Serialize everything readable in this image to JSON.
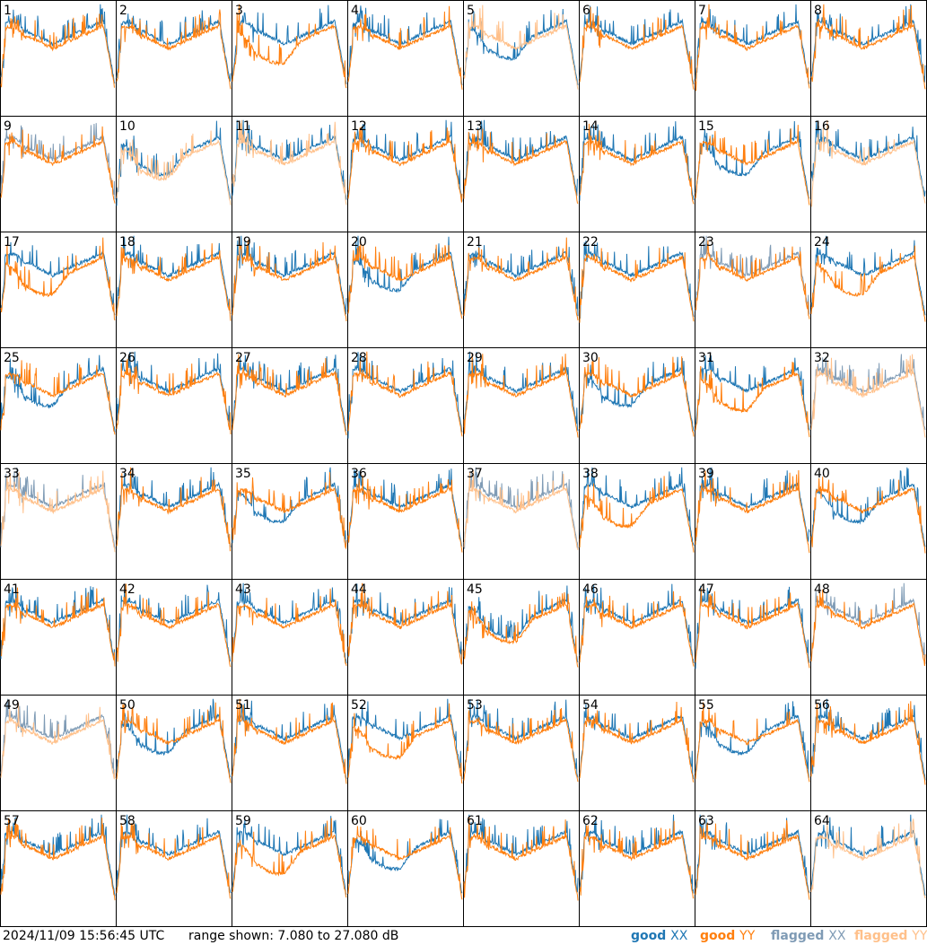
{
  "timestamp": "2024/11/09 15:56:45 UTC",
  "range_text": "range shown: 7.080 to 27.080 dB",
  "legend": [
    {
      "label": "good",
      "pol": "XX",
      "color": "#1f77b4"
    },
    {
      "label": "good",
      "pol": "YY",
      "color": "#ff7f0e"
    },
    {
      "label": "flagged",
      "pol": "XX",
      "color": "#7f9bb5"
    },
    {
      "label": "flagged",
      "pol": "YY",
      "color": "#ffc08a"
    }
  ],
  "colors": {
    "good_xx": "#1f77b4",
    "good_yy": "#ff7f0e",
    "flagged_xx": "#7f9bb5",
    "flagged_yy": "#ffc08a"
  },
  "chart_data": {
    "type": "line",
    "grid": "8x8 small multiples",
    "ylim_db": [
      7.08,
      27.08
    ],
    "tiles": [
      {
        "id": "1",
        "xx": "good",
        "yy": "good"
      },
      {
        "id": "2",
        "xx": "good",
        "yy": "good"
      },
      {
        "id": "3",
        "xx": "good",
        "yy": "good"
      },
      {
        "id": "4",
        "xx": "good",
        "yy": "good"
      },
      {
        "id": "5",
        "xx": "good",
        "yy": "flagged"
      },
      {
        "id": "6",
        "xx": "good",
        "yy": "good"
      },
      {
        "id": "7",
        "xx": "good",
        "yy": "good"
      },
      {
        "id": "8",
        "xx": "good",
        "yy": "good"
      },
      {
        "id": "9",
        "xx": "flagged",
        "yy": "good"
      },
      {
        "id": "10",
        "xx": "good",
        "yy": "flagged"
      },
      {
        "id": "11",
        "xx": "good",
        "yy": "flagged"
      },
      {
        "id": "12",
        "xx": "good",
        "yy": "good"
      },
      {
        "id": "13",
        "xx": "good",
        "yy": "good"
      },
      {
        "id": "14",
        "xx": "good",
        "yy": "good"
      },
      {
        "id": "15",
        "xx": "good",
        "yy": "good"
      },
      {
        "id": "16",
        "xx": "good",
        "yy": "flagged"
      },
      {
        "id": "17",
        "xx": "good",
        "yy": "good"
      },
      {
        "id": "18",
        "xx": "good",
        "yy": "good"
      },
      {
        "id": "19",
        "xx": "good",
        "yy": "good"
      },
      {
        "id": "20",
        "xx": "good",
        "yy": "good"
      },
      {
        "id": "21",
        "xx": "good",
        "yy": "good"
      },
      {
        "id": "22",
        "xx": "good",
        "yy": "good"
      },
      {
        "id": "23",
        "xx": "flagged",
        "yy": "good"
      },
      {
        "id": "24",
        "xx": "good",
        "yy": "good"
      },
      {
        "id": "25",
        "xx": "good",
        "yy": "good"
      },
      {
        "id": "26",
        "xx": "good",
        "yy": "good"
      },
      {
        "id": "27",
        "xx": "good",
        "yy": "good"
      },
      {
        "id": "28",
        "xx": "good",
        "yy": "good"
      },
      {
        "id": "29",
        "xx": "good",
        "yy": "good"
      },
      {
        "id": "30",
        "xx": "good",
        "yy": "good"
      },
      {
        "id": "31",
        "xx": "good",
        "yy": "good"
      },
      {
        "id": "32",
        "xx": "flagged",
        "yy": "flagged"
      },
      {
        "id": "33",
        "xx": "flagged",
        "yy": "flagged"
      },
      {
        "id": "34",
        "xx": "good",
        "yy": "good"
      },
      {
        "id": "35",
        "xx": "good",
        "yy": "good"
      },
      {
        "id": "36",
        "xx": "good",
        "yy": "good"
      },
      {
        "id": "37",
        "xx": "flagged",
        "yy": "flagged"
      },
      {
        "id": "38",
        "xx": "good",
        "yy": "good"
      },
      {
        "id": "39",
        "xx": "good",
        "yy": "good"
      },
      {
        "id": "40",
        "xx": "good",
        "yy": "good"
      },
      {
        "id": "41",
        "xx": "good",
        "yy": "good"
      },
      {
        "id": "42",
        "xx": "good",
        "yy": "good"
      },
      {
        "id": "43",
        "xx": "good",
        "yy": "good"
      },
      {
        "id": "44",
        "xx": "good",
        "yy": "good"
      },
      {
        "id": "45",
        "xx": "good",
        "yy": "good"
      },
      {
        "id": "46",
        "xx": "good",
        "yy": "good"
      },
      {
        "id": "47",
        "xx": "good",
        "yy": "good"
      },
      {
        "id": "48",
        "xx": "flagged",
        "yy": "good"
      },
      {
        "id": "49",
        "xx": "flagged",
        "yy": "flagged"
      },
      {
        "id": "50",
        "xx": "good",
        "yy": "good"
      },
      {
        "id": "51",
        "xx": "good",
        "yy": "good"
      },
      {
        "id": "52",
        "xx": "good",
        "yy": "good"
      },
      {
        "id": "53",
        "xx": "good",
        "yy": "good"
      },
      {
        "id": "54",
        "xx": "good",
        "yy": "good"
      },
      {
        "id": "55",
        "xx": "good",
        "yy": "good"
      },
      {
        "id": "56",
        "xx": "good",
        "yy": "good"
      },
      {
        "id": "57",
        "xx": "good",
        "yy": "good"
      },
      {
        "id": "58",
        "xx": "good",
        "yy": "good"
      },
      {
        "id": "59",
        "xx": "good",
        "yy": "good"
      },
      {
        "id": "60",
        "xx": "good",
        "yy": "good"
      },
      {
        "id": "61",
        "xx": "good",
        "yy": "good"
      },
      {
        "id": "62",
        "xx": "good",
        "yy": "good"
      },
      {
        "id": "63",
        "xx": "good",
        "yy": "good"
      },
      {
        "id": "64",
        "xx": "good",
        "yy": "flagged"
      }
    ]
  }
}
